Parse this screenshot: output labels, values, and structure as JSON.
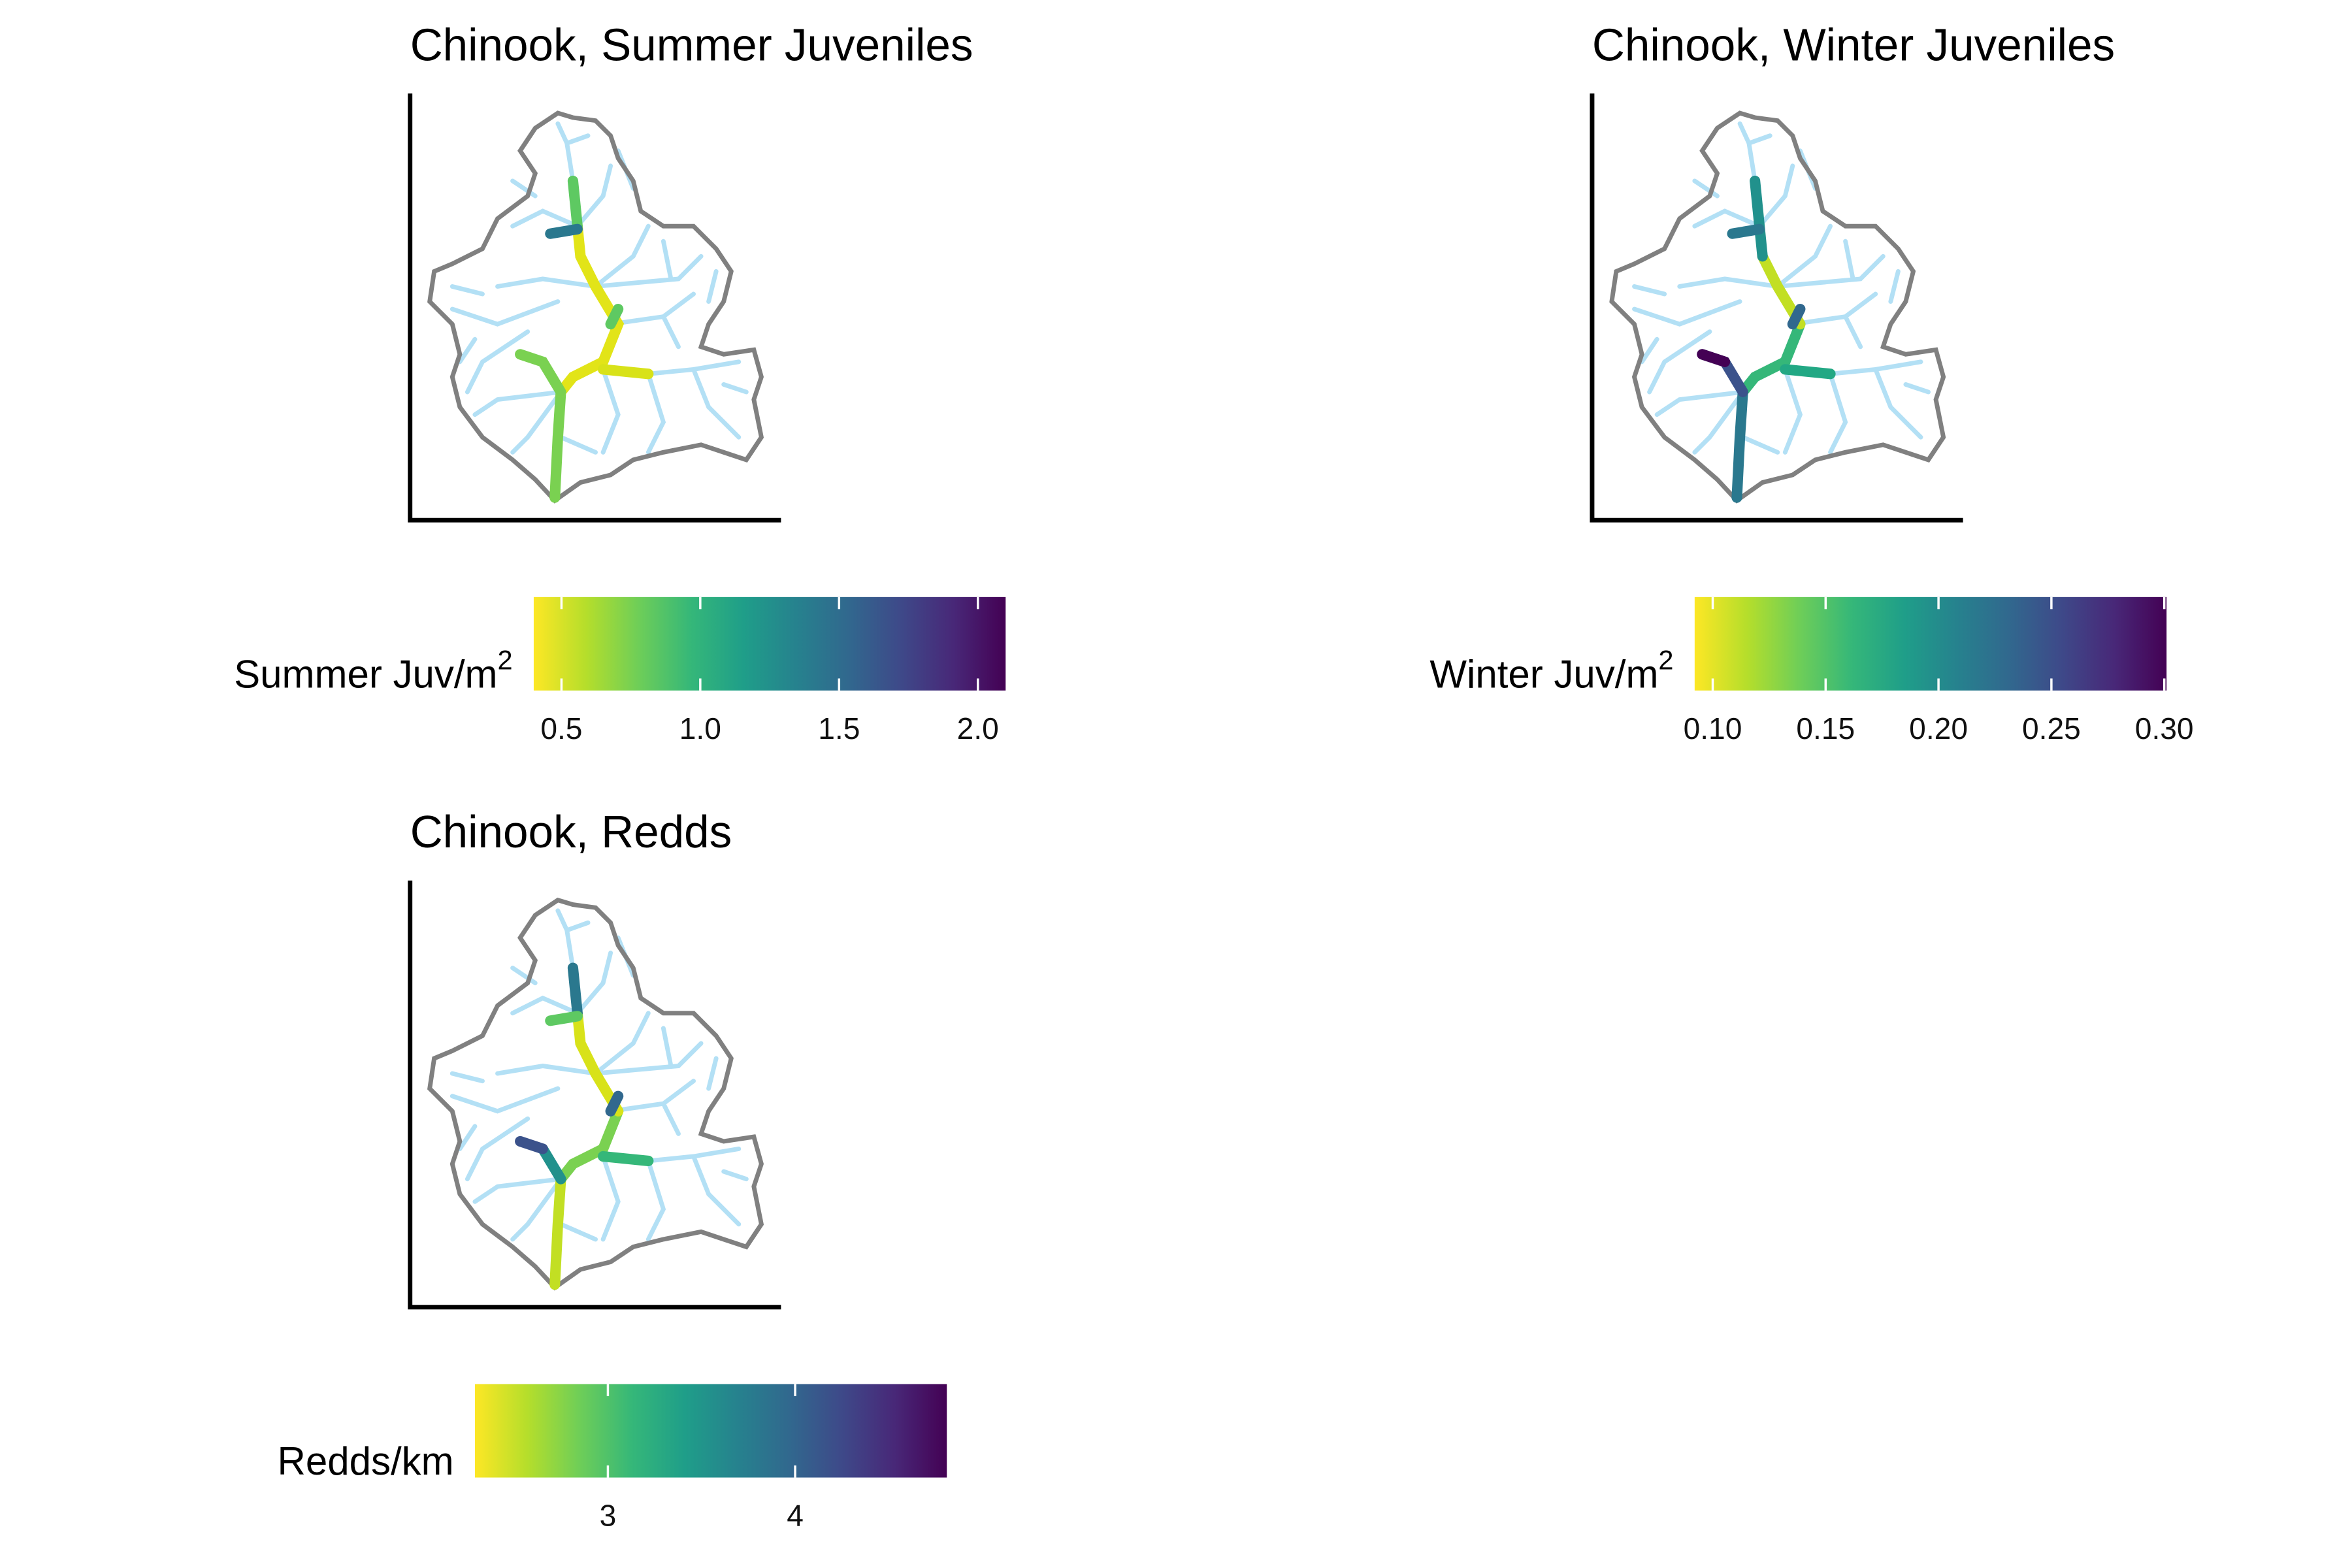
{
  "palette": [
    "#fde725",
    "#b5de2b",
    "#6ece58",
    "#35b779",
    "#1f9e89",
    "#26828e",
    "#31688e",
    "#3e4989",
    "#482878",
    "#440154"
  ],
  "panels": [
    {
      "title": "Chinook, Summer Juveniles",
      "legend_title": "Summer Juv/m",
      "legend_title_superscript": "2",
      "scale": {
        "lim": [
          0.4,
          2.1
        ],
        "ticks": [
          0.5,
          {
            "value": 1.0,
            "label": "1.0"
          },
          1.5,
          {
            "value": 2.0,
            "label": "2.0"
          }
        ]
      }
    },
    {
      "title": "Chinook, Winter Juveniles",
      "legend_title": "Winter Juv/m",
      "legend_title_superscript": "2",
      "scale": {
        "lim": [
          0.092,
          0.301
        ],
        "ticks": [
          {
            "value": 0.1,
            "label": "0.10"
          },
          0.15,
          {
            "value": 0.2,
            "label": "0.20"
          },
          0.25,
          {
            "value": 0.3,
            "label": "0.30"
          }
        ]
      }
    },
    {
      "title": "Chinook, Redds",
      "legend_title": "Redds/km",
      "scale": {
        "lim": [
          2.29,
          4.81
        ],
        "ticks": [
          3,
          4
        ]
      }
    }
  ]
}
